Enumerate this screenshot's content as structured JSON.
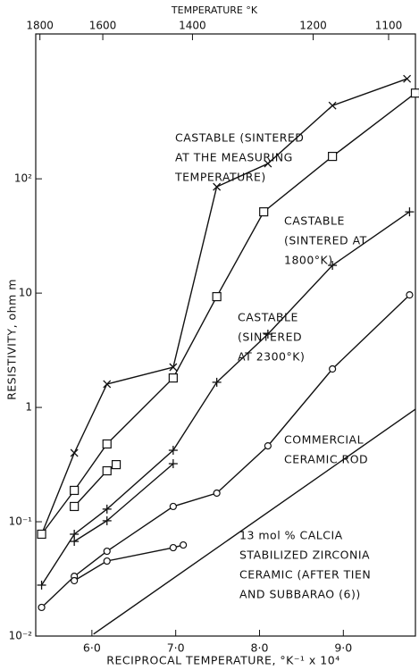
{
  "chart_data": {
    "type": "line",
    "log_y": true,
    "xlabel": "RECIPROCAL TEMPERATURE, °K⁻¹ x 10⁴",
    "ylabel": "RESISTIVITY, ohm m",
    "x2label": "TEMPERATURE °K",
    "xlim": [
      5.33,
      9.86
    ],
    "ylim": [
      0.01,
      1850
    ],
    "xticks": [
      {
        "value": 6,
        "label": "6·0"
      },
      {
        "value": 7,
        "label": "7·0"
      },
      {
        "value": 8,
        "label": "8·0"
      },
      {
        "value": 9,
        "label": "9·0"
      }
    ],
    "x2ticks": [
      {
        "value": 5.38,
        "label": "1800"
      },
      {
        "value": 6.13,
        "label": "1600"
      },
      {
        "value": 7.2,
        "label": "1400"
      },
      {
        "value": 8.64,
        "label": "1200"
      },
      {
        "value": 9.54,
        "label": "1100"
      }
    ],
    "yticks": [
      {
        "value": 0.01,
        "label": "10⁻²"
      },
      {
        "value": 0.1,
        "label": "10⁻¹"
      },
      1,
      10,
      {
        "value": 100,
        "label": "10²"
      }
    ],
    "color": "#111111",
    "series": [
      {
        "marker": "x",
        "x": [
          5.4,
          5.79,
          6.18,
          6.97,
          7.49,
          8.1,
          8.87,
          9.76
        ],
        "values": [
          0.0778,
          0.4,
          1.6,
          2.25,
          85.1,
          136,
          437,
          750
        ]
      },
      {
        "marker": "square",
        "x": [
          5.4,
          5.79,
          6.18,
          6.97,
          7.49,
          8.05,
          8.87,
          9.86
        ],
        "values": [
          0.0778,
          0.188,
          0.479,
          1.81,
          9.31,
          51.4,
          157,
          562
        ]
      },
      {
        "marker": "square",
        "x": [
          5.79,
          6.18,
          6.29
        ],
        "values": [
          0.136,
          0.279,
          0.316
        ]
      },
      {
        "marker": "plus",
        "x": [
          5.4,
          5.79,
          6.18,
          6.97,
          7.49,
          8.1,
          8.87,
          9.79
        ],
        "values": [
          0.0279,
          0.0778,
          0.129,
          0.422,
          1.66,
          4.38,
          17.5,
          51.4
        ]
      },
      {
        "marker": "plus",
        "x": [
          5.79,
          6.18,
          6.97
        ],
        "values": [
          0.0673,
          0.102,
          0.322
        ]
      },
      {
        "marker": "circle",
        "x": [
          5.4,
          5.79,
          6.18,
          6.97,
          7.49,
          8.1,
          8.87,
          9.79
        ],
        "values": [
          0.0178,
          0.0333,
          0.0552,
          0.136,
          0.178,
          0.461,
          2.17,
          9.64
        ]
      },
      {
        "marker": "circle",
        "x": [
          5.79,
          6.18,
          6.97,
          7.09
        ],
        "values": [
          0.0305,
          0.0453,
          0.0593,
          0.0626
        ]
      },
      {
        "marker": "none",
        "x": [
          6.02,
          9.86
        ],
        "values": [
          0.0104,
          0.964
        ]
      }
    ],
    "annotations": [
      [
        "CASTABLE (SINTERED",
        "AT THE MEASURING",
        "TEMPERATURE)"
      ],
      [
        "CASTABLE",
        "(SINTERED AT",
        "1800°K)"
      ],
      [
        "CASTABLE",
        "(SINTERED",
        "AT 2300°K)"
      ],
      [
        "COMMERCIAL",
        "CERAMIC ROD"
      ],
      [
        "13 mol % CALCIA",
        "STABILIZED ZIRCONIA",
        "CERAMIC (AFTER TIEN",
        "AND SUBBARAO (6))"
      ]
    ]
  }
}
